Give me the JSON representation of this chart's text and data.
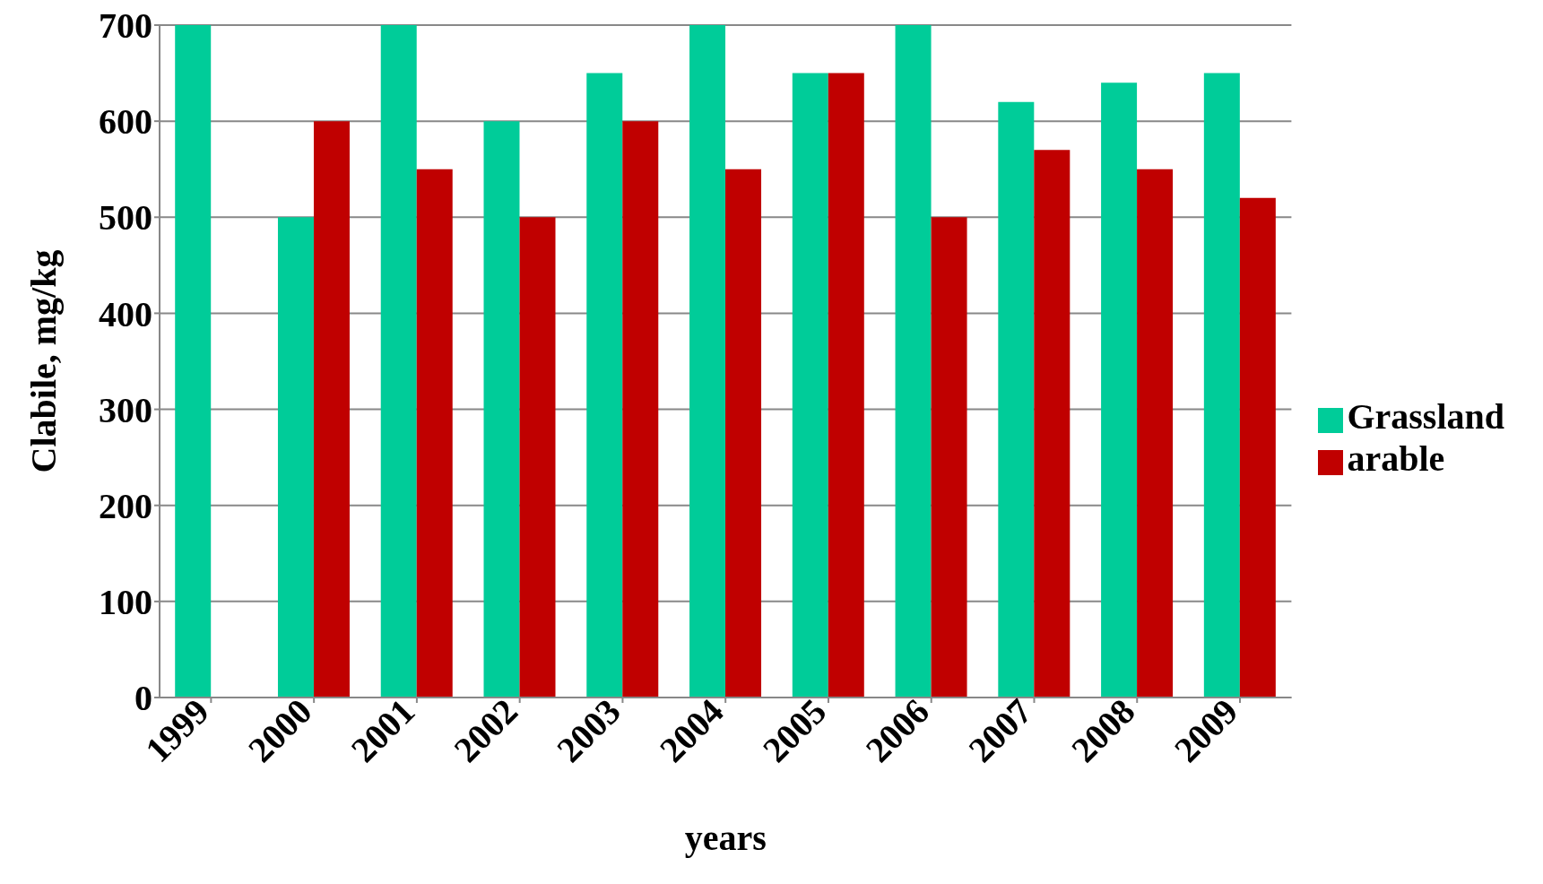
{
  "chart_data": {
    "type": "bar",
    "xlabel": "years",
    "ylabel": "Clabile, mg/kg",
    "categories": [
      "1999",
      "2000",
      "2001",
      "2002",
      "2003",
      "2004",
      "2005",
      "2006",
      "2007",
      "2008",
      "2009"
    ],
    "series": [
      {
        "name": "Grassland",
        "color": "#00cc99",
        "values": [
          700,
          500,
          700,
          600,
          650,
          700,
          650,
          700,
          620,
          640,
          650
        ]
      },
      {
        "name": "arable",
        "color": "#c00000",
        "values": [
          null,
          600,
          550,
          500,
          600,
          550,
          650,
          500,
          570,
          550,
          520
        ]
      }
    ],
    "ylim": [
      0,
      700
    ],
    "yticks": [
      0,
      100,
      200,
      300,
      400,
      500,
      600,
      700
    ],
    "grid": "y",
    "legend": "right"
  }
}
